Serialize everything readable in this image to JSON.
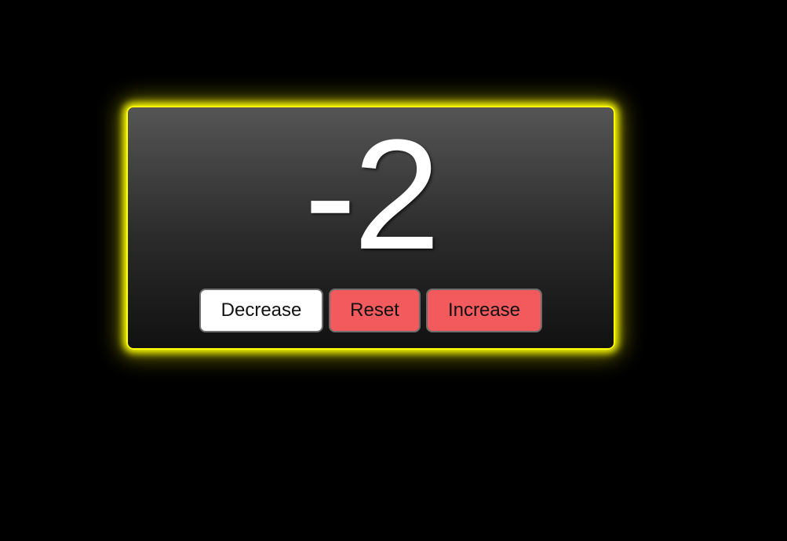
{
  "counter": {
    "value": "-2"
  },
  "buttons": {
    "decrease_label": "Decrease",
    "reset_label": "Reset",
    "increase_label": "Increase"
  },
  "colors": {
    "background": "#000000",
    "glow": "#ffff00",
    "card_top": "#555555",
    "card_bottom": "#111111",
    "decrease_button": "#ffffff",
    "reset_button": "#f25a5e",
    "increase_button": "#f25a5e",
    "counter_text": "#ffffff"
  }
}
